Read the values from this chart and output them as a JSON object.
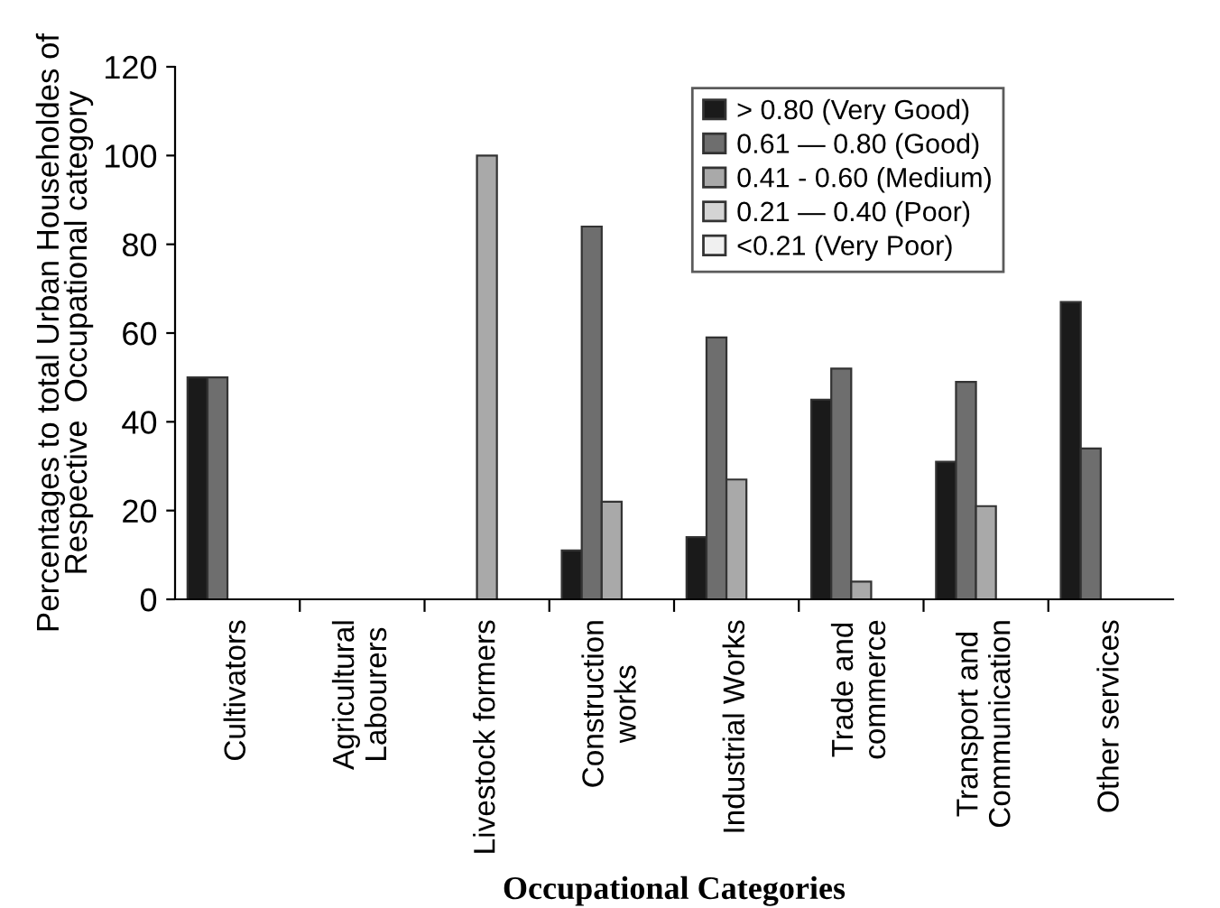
{
  "chart_data": {
    "type": "bar",
    "xlabel": "Occupational Categories",
    "ylabel": "Percentages to total Urban Householdes of\nRespective  Occupational category",
    "categories": [
      "Cultivators",
      "Agricultural\nLabourers",
      "Livestock formers",
      "Construction\nworks",
      "Industrial Works",
      "Trade and\ncommerce",
      "Transport and\nCommunication",
      "Other services"
    ],
    "series": [
      {
        "name": "> 0.80 (Very Good)",
        "color": "#1a1a1a",
        "values": [
          50,
          null,
          null,
          11,
          14,
          45,
          31,
          67
        ]
      },
      {
        "name": "0.61 — 0.80 (Good)",
        "color": "#6e6e6e",
        "values": [
          50,
          null,
          null,
          84,
          59,
          52,
          49,
          34
        ]
      },
      {
        "name": "0.41 - 0.60 (Medium)",
        "color": "#a9a9a9",
        "values": [
          null,
          null,
          100,
          22,
          27,
          4,
          21,
          null
        ]
      },
      {
        "name": "0.21 — 0.40 (Poor)",
        "color": "#d4d4d4",
        "values": [
          null,
          null,
          null,
          null,
          null,
          null,
          null,
          null
        ]
      },
      {
        "name": "<0.21 (Very Poor)",
        "color": "#f0f0f0",
        "values": [
          null,
          null,
          null,
          null,
          null,
          null,
          null,
          null
        ]
      }
    ],
    "ylim": [
      0,
      120
    ],
    "yticks": [
      0,
      20,
      40,
      60,
      80,
      100,
      120
    ],
    "legend": "top right",
    "grid": false
  }
}
